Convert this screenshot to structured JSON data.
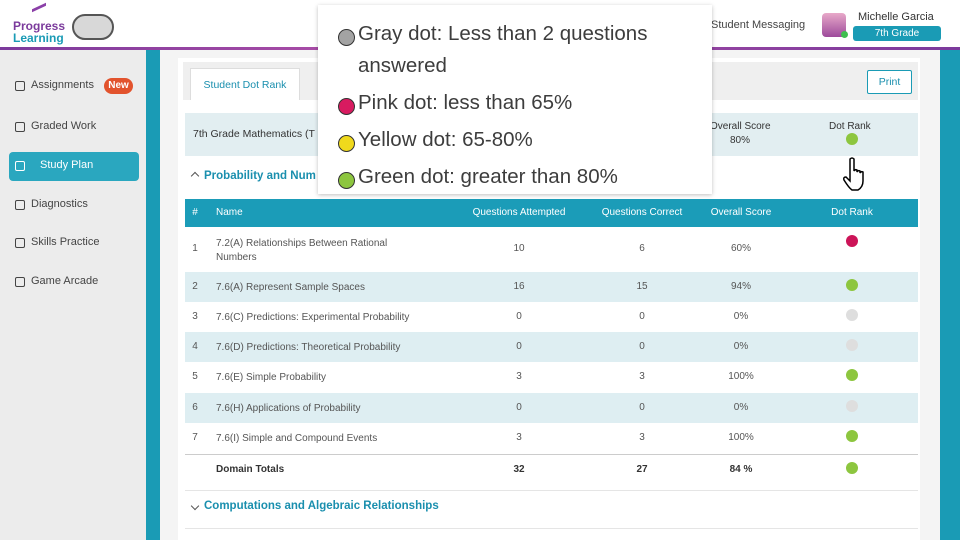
{
  "header": {
    "logo_top": "Progress",
    "logo_bottom": "Learning",
    "messaging": "Student Messaging",
    "user_name": "Michelle Garcia",
    "grade": "7th Grade"
  },
  "sidebar": [
    {
      "label": "Assignments",
      "badge": "New"
    },
    {
      "label": "Graded Work"
    },
    {
      "label": "Study Plan",
      "active": true
    },
    {
      "label": "Diagnostics"
    },
    {
      "label": "Skills Practice"
    },
    {
      "label": "Game Arcade"
    }
  ],
  "tab": "Student Dot Rank",
  "print": "Print",
  "summary": {
    "subject": "7th Grade Mathematics (T",
    "score_label": "Overall Score",
    "score": "80%",
    "dot_label": "Dot Rank",
    "dot": "green"
  },
  "sections": [
    "Probability and Num",
    "Computations and Algebraic Relationships"
  ],
  "table": {
    "columns": [
      "#",
      "Name",
      "Questions Attempted",
      "Questions Correct",
      "Overall Score",
      "Dot Rank"
    ],
    "rows": [
      [
        1,
        "7.2(A) Relationships Between Rational Numbers",
        10,
        6,
        "60%",
        "pink"
      ],
      [
        2,
        "7.6(A) Represent Sample Spaces",
        16,
        15,
        "94%",
        "green"
      ],
      [
        3,
        "7.6(C) Predictions: Experimental Probability",
        0,
        0,
        "0%",
        "gray"
      ],
      [
        4,
        "7.6(D) Predictions: Theoretical Probability",
        0,
        0,
        "0%",
        "gray"
      ],
      [
        5,
        "7.6(E) Simple Probability",
        3,
        3,
        "100%",
        "green"
      ],
      [
        6,
        "7.6(H) Applications of Probability",
        0,
        0,
        "0%",
        "gray"
      ],
      [
        7,
        "7.6(I) Simple and Compound Events",
        3,
        3,
        "100%",
        "green"
      ]
    ],
    "totals": [
      "Domain Totals",
      32,
      27,
      "84 %",
      "green"
    ]
  },
  "legend": [
    {
      "text": "Gray dot: Less than 2 questions answered",
      "color": "#a3a3a3"
    },
    {
      "text": "Pink dot: less than 65%",
      "color": "#d81b60"
    },
    {
      "text": "Yellow dot: 65-80%",
      "color": "#f0d91c"
    },
    {
      "text": "Green dot: greater than 80%",
      "color": "#8dc63f"
    }
  ],
  "dot_colors": {
    "gray": "#dedede",
    "pink": "#cc1458",
    "yellow": "#f0d91c",
    "green": "#8dc63f"
  }
}
